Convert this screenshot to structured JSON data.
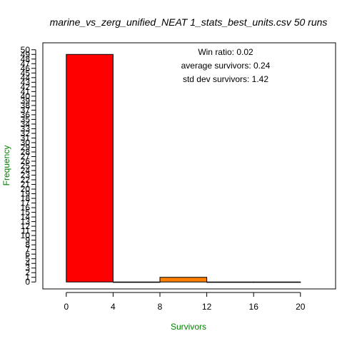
{
  "chart_data": {
    "type": "bar",
    "title": "marine_vs_zerg_unified_NEAT 1_stats_best_units.csv 50 runs",
    "xlabel": "Survivors",
    "ylabel": "Frequency",
    "xlim": [
      -2,
      23
    ],
    "ylim": [
      -1.5,
      51.5
    ],
    "x_ticks": [
      0,
      4,
      8,
      12,
      16,
      20
    ],
    "y_ticks": [
      0,
      1,
      2,
      3,
      4,
      5,
      6,
      7,
      8,
      9,
      10,
      11,
      12,
      13,
      14,
      15,
      16,
      17,
      18,
      19,
      20,
      21,
      22,
      23,
      24,
      25,
      26,
      27,
      28,
      29,
      30,
      31,
      32,
      33,
      34,
      35,
      36,
      37,
      38,
      39,
      40,
      41,
      42,
      43,
      44,
      45,
      46,
      47,
      48,
      49,
      50
    ],
    "bins": [
      {
        "from": 0,
        "to": 4,
        "count": 49,
        "color": "#ff0000"
      },
      {
        "from": 4,
        "to": 8,
        "count": 0,
        "color": "#ff4000"
      },
      {
        "from": 8,
        "to": 12,
        "count": 1,
        "color": "#ff8000"
      },
      {
        "from": 12,
        "to": 16,
        "count": 0,
        "color": "#ffbf00"
      },
      {
        "from": 16,
        "to": 20,
        "count": 0,
        "color": "#ffff00"
      }
    ],
    "axis_title_color": "#008000",
    "annotations": [
      "Win ratio: 0.02",
      "average survivors: 0.24",
      "std dev survivors: 1.42"
    ],
    "grid": false
  }
}
